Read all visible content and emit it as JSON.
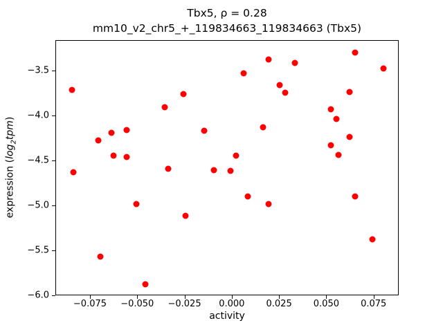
{
  "chart_data": {
    "type": "scatter",
    "title_line1": "Tbx5, ρ = 0.28",
    "title_line2": "mm10_v2_chr5_+_119834663_119834663 (Tbx5)",
    "xlabel": "activity",
    "ylabel": {
      "prefix": "expression (",
      "log": "log",
      "sub": "2",
      "var": "tpm",
      "suffix": ")"
    },
    "marker_color": "#ff0000",
    "legend": "none",
    "grid": false,
    "xlim": [
      -0.0933,
      0.0883
    ],
    "ylim": [
      -6.0,
      -3.16
    ],
    "x_ticks": {
      "values": [
        -0.075,
        -0.05,
        -0.025,
        0.0,
        0.025,
        0.05,
        0.075
      ],
      "labels": [
        "−0.075",
        "−0.050",
        "−0.025",
        "0.000",
        "0.025",
        "0.050",
        "0.075"
      ]
    },
    "y_ticks": {
      "values": [
        -6.0,
        -5.5,
        -5.0,
        -4.5,
        -4.0,
        -3.5
      ],
      "labels": [
        "−6.0",
        "−5.5",
        "−5.0",
        "−4.5",
        "−4.0",
        "−3.5"
      ]
    },
    "points": [
      [
        -0.085,
        -3.71
      ],
      [
        -0.084,
        -4.62
      ],
      [
        -0.071,
        -4.27
      ],
      [
        -0.07,
        -5.56
      ],
      [
        -0.064,
        -4.18
      ],
      [
        -0.063,
        -4.44
      ],
      [
        -0.056,
        -4.15
      ],
      [
        -0.056,
        -4.45
      ],
      [
        -0.051,
        -4.98
      ],
      [
        -0.046,
        -5.87
      ],
      [
        -0.036,
        -3.9
      ],
      [
        -0.034,
        -4.58
      ],
      [
        -0.026,
        -3.75
      ],
      [
        -0.025,
        -5.11
      ],
      [
        -0.015,
        -4.16
      ],
      [
        -0.01,
        -4.6
      ],
      [
        -0.001,
        -4.61
      ],
      [
        0.002,
        -4.44
      ],
      [
        0.006,
        -3.52
      ],
      [
        0.008,
        -4.89
      ],
      [
        0.016,
        -4.12
      ],
      [
        0.019,
        -3.37
      ],
      [
        0.019,
        -4.98
      ],
      [
        0.025,
        -3.65
      ],
      [
        0.028,
        -3.74
      ],
      [
        0.033,
        -3.41
      ],
      [
        0.052,
        -3.92
      ],
      [
        0.052,
        -4.32
      ],
      [
        0.055,
        -4.03
      ],
      [
        0.056,
        -4.43
      ],
      [
        0.062,
        -3.73
      ],
      [
        0.062,
        -4.23
      ],
      [
        0.065,
        -3.29
      ],
      [
        0.065,
        -4.89
      ],
      [
        0.074,
        -5.37
      ],
      [
        0.08,
        -3.47
      ]
    ]
  }
}
